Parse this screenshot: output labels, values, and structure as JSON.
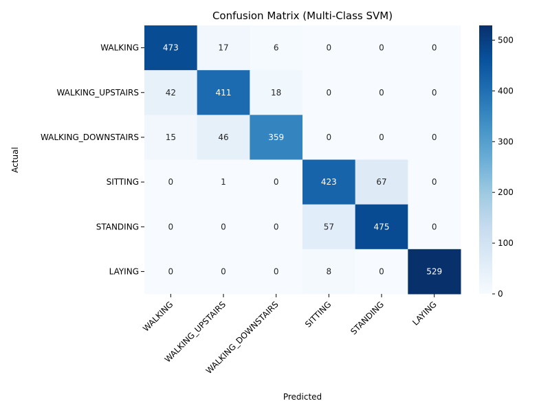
{
  "chart_data": {
    "type": "heatmap",
    "title": "Confusion Matrix (Multi-Class SVM)",
    "xlabel": "Predicted",
    "ylabel": "Actual",
    "x_categories": [
      "WALKING",
      "WALKING_UPSTAIRS",
      "WALKING_DOWNSTAIRS",
      "SITTING",
      "STANDING",
      "LAYING"
    ],
    "y_categories": [
      "WALKING",
      "WALKING_UPSTAIRS",
      "WALKING_DOWNSTAIRS",
      "SITTING",
      "STANDING",
      "LAYING"
    ],
    "values": [
      [
        473,
        17,
        6,
        0,
        0,
        0
      ],
      [
        42,
        411,
        18,
        0,
        0,
        0
      ],
      [
        15,
        46,
        359,
        0,
        0,
        0
      ],
      [
        0,
        1,
        0,
        423,
        67,
        0
      ],
      [
        0,
        0,
        0,
        57,
        475,
        0
      ],
      [
        0,
        0,
        0,
        8,
        0,
        529
      ]
    ],
    "colorbar": {
      "min": 0,
      "max": 529,
      "ticks": [
        0,
        100,
        200,
        300,
        400,
        500
      ],
      "colormap": [
        "#f7fbff",
        "#deebf7",
        "#c6dbef",
        "#9ecae1",
        "#6baed6",
        "#4292c6",
        "#2171b5",
        "#08519c",
        "#08306b"
      ]
    },
    "annotation_dark_color": "#262626",
    "annotation_light_color": "#ffffff"
  }
}
